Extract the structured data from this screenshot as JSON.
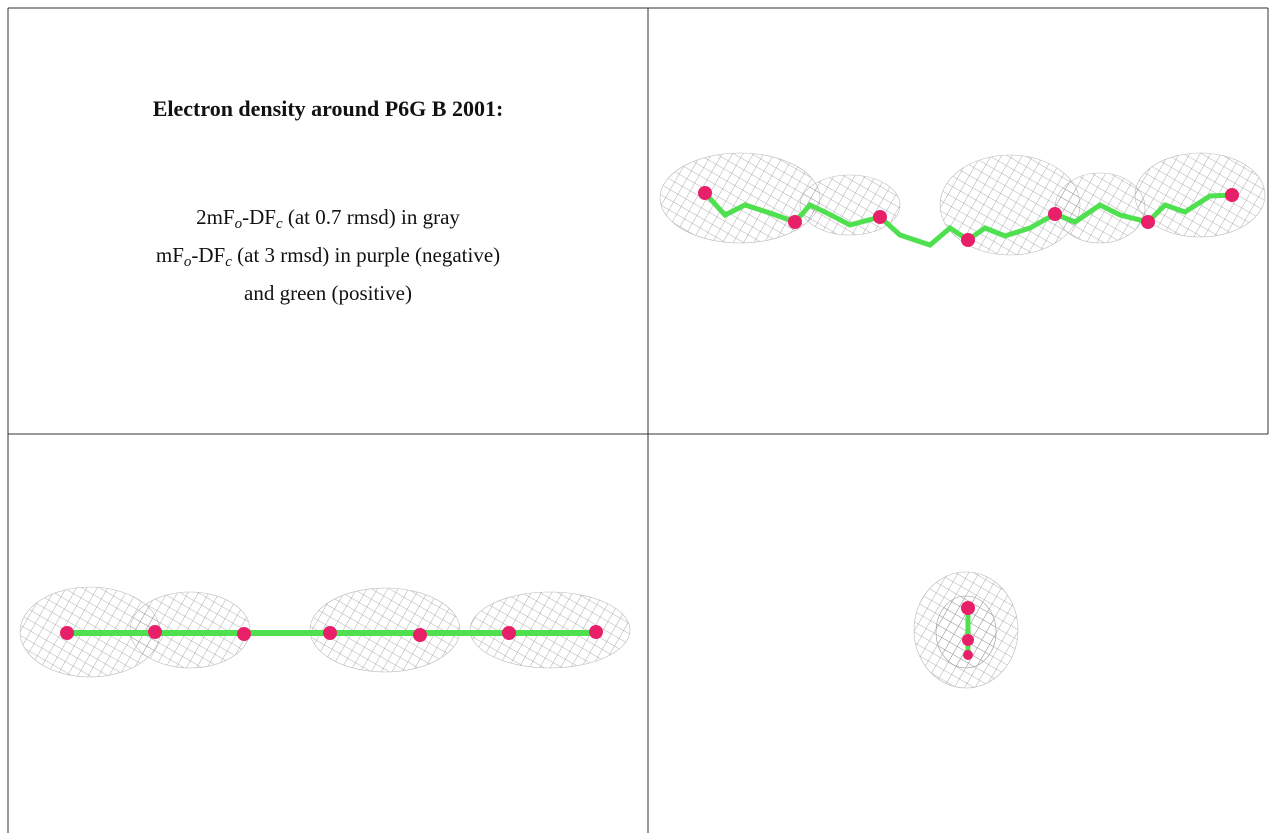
{
  "header": {
    "title": "Electron density around P6G B 2001:"
  },
  "caption": {
    "lines": [
      {
        "parts": [
          "2mF",
          "o",
          "-DF",
          "c",
          " (at 0.7 rmsd) in gray"
        ]
      },
      {
        "parts": [
          "mF",
          "o",
          "-DF",
          "c",
          " (at 3 rmsd) in purple (negative)"
        ]
      },
      {
        "parts": [
          "and green (positive)"
        ]
      }
    ]
  }
}
